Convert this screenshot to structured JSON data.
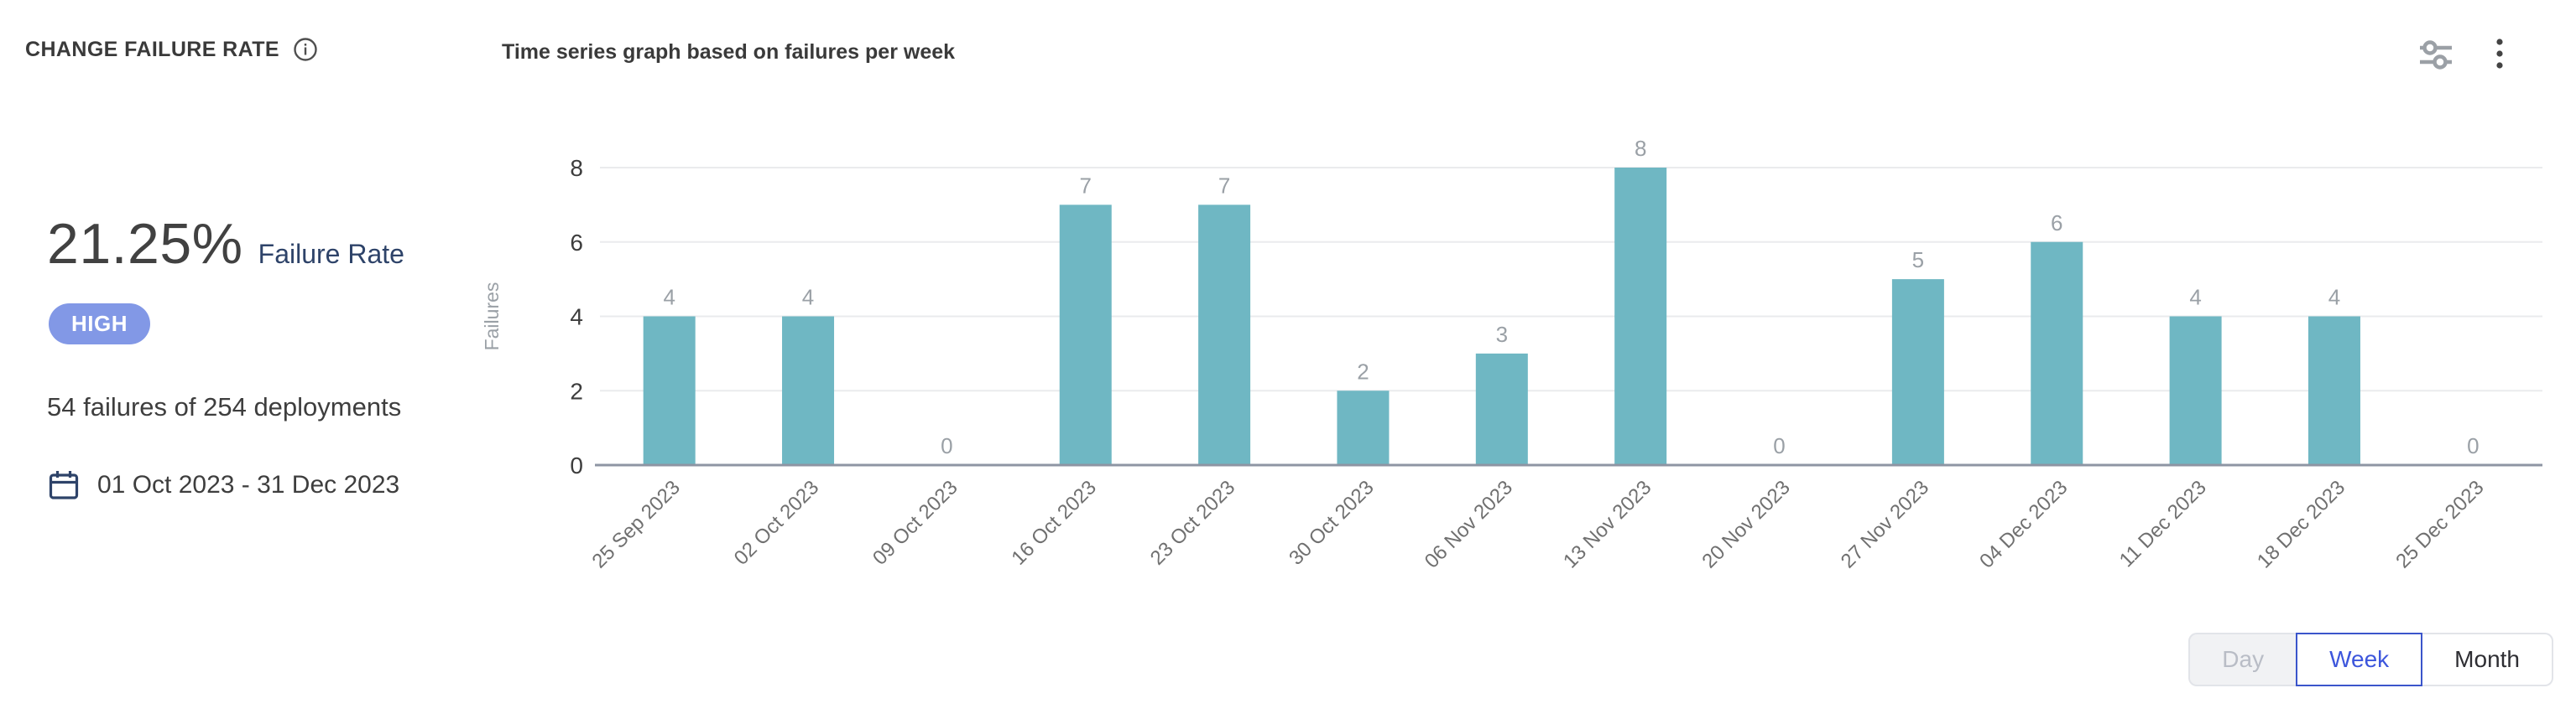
{
  "header": {
    "title": "CHANGE FAILURE RATE",
    "subtitle": "Time series graph based on failures per week"
  },
  "stats": {
    "rate_value": "21.25%",
    "rate_label": "Failure Rate",
    "severity": "HIGH",
    "summary": "54 failures of 254 deployments",
    "date_range": "01 Oct 2023 - 31 Dec 2023"
  },
  "chart_data": {
    "type": "bar",
    "title": "Time series graph based on failures per week",
    "categories": [
      "25 Sep 2023",
      "02 Oct 2023",
      "09 Oct 2023",
      "16 Oct 2023",
      "23 Oct 2023",
      "30 Oct 2023",
      "06 Nov 2023",
      "13 Nov 2023",
      "20 Nov 2023",
      "27 Nov 2023",
      "04 Dec 2023",
      "11 Dec 2023",
      "18 Dec 2023",
      "25 Dec 2023"
    ],
    "values": [
      4,
      4,
      0,
      7,
      7,
      2,
      3,
      8,
      0,
      5,
      6,
      4,
      4,
      0
    ],
    "xlabel": "",
    "ylabel": "Failures",
    "yticks": [
      0,
      2,
      4,
      6,
      8
    ],
    "ylim": [
      0,
      8
    ],
    "bar_color": "#6FB7C3",
    "grid": true,
    "legend": false,
    "value_labels": true,
    "x_label_rotation": -45
  },
  "controls": {
    "granularity": [
      {
        "label": "Day",
        "state": "disabled"
      },
      {
        "label": "Week",
        "state": "selected"
      },
      {
        "label": "Month",
        "state": "default"
      }
    ]
  },
  "colors": {
    "bar_teal": "#6FB7C3",
    "severity_high_bg": "#8298E6",
    "selected_blue_border": "#3B55CB",
    "selected_blue_text": "#3D56DC",
    "navy_text": "#2E4369",
    "gridline": "#EAEBED",
    "axis_line": "#8E95A3",
    "muted_gray": "#9AA0A6"
  }
}
